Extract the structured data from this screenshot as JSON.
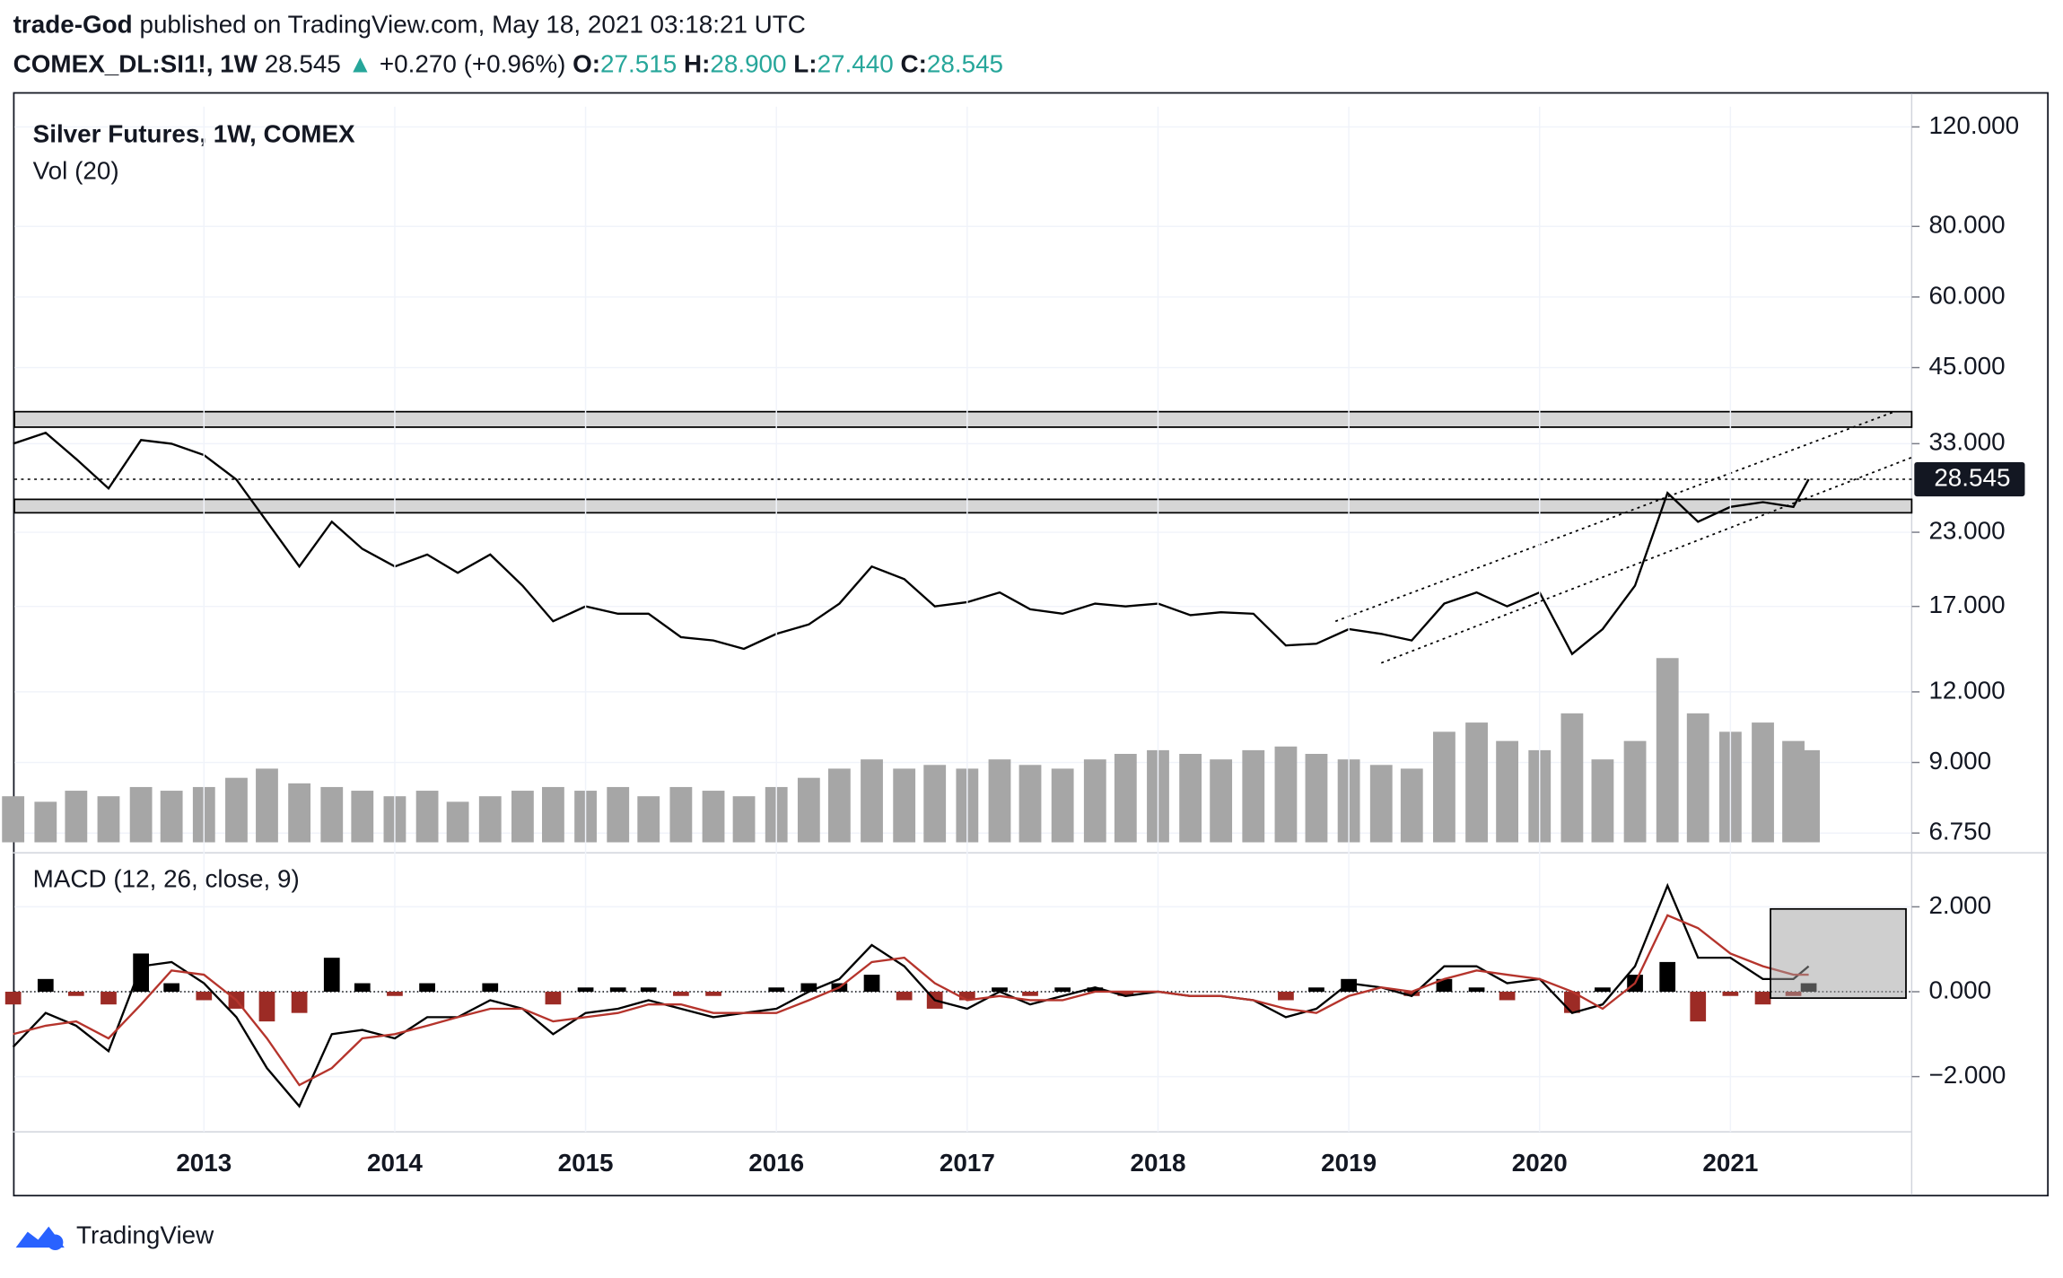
{
  "header": {
    "author": "trade-God",
    "published": "published on TradingView.com, May 18, 2021 03:18:21 UTC",
    "symbol": "COMEX_DL:SI1!, 1W",
    "price": "28.545",
    "arrow": "▲",
    "change": "+0.270 (+0.96%)",
    "o_label": "O:",
    "open": "27.515",
    "h_label": "H:",
    "high": "28.900",
    "l_label": "L:",
    "low": "27.440",
    "c_label": "C:",
    "close": "28.545"
  },
  "footer": {
    "brand": "TradingView"
  },
  "chart_data": [
    {
      "type": "line",
      "title": "Silver Futures, 1W, COMEX",
      "log": true,
      "grid": true,
      "x": [
        2012,
        2012.17,
        2012.33,
        2012.5,
        2012.67,
        2012.83,
        2013,
        2013.17,
        2013.33,
        2013.5,
        2013.67,
        2013.83,
        2014,
        2014.17,
        2014.33,
        2014.5,
        2014.67,
        2014.83,
        2015,
        2015.17,
        2015.33,
        2015.5,
        2015.67,
        2015.83,
        2016,
        2016.17,
        2016.33,
        2016.5,
        2016.67,
        2016.83,
        2017,
        2017.17,
        2017.33,
        2017.5,
        2017.67,
        2017.83,
        2018,
        2018.17,
        2018.33,
        2018.5,
        2018.67,
        2018.83,
        2019,
        2019.17,
        2019.33,
        2019.5,
        2019.67,
        2019.83,
        2020,
        2020.17,
        2020.33,
        2020.5,
        2020.67,
        2020.83,
        2021,
        2021.17,
        2021.33,
        2021.41
      ],
      "series": [
        {
          "color": "#000000",
          "values": [
            33,
            34.5,
            31,
            27.5,
            33.5,
            33,
            31.5,
            28.5,
            24,
            20,
            24,
            21.5,
            20,
            21,
            19.5,
            21,
            18.5,
            16,
            17,
            16.5,
            16.5,
            15,
            14.8,
            14.3,
            15.2,
            15.8,
            17.2,
            20,
            19,
            17,
            17.3,
            18,
            16.8,
            16.5,
            17.2,
            17,
            17.2,
            16.4,
            16.6,
            16.5,
            14.5,
            14.6,
            15.5,
            15.2,
            14.8,
            17.2,
            18,
            17,
            18,
            14,
            15.5,
            18.5,
            27,
            24,
            25.5,
            26,
            25.5,
            28.545
          ]
        }
      ],
      "volume": {
        "label": "Vol (20)",
        "color": "#a6a6a6",
        "values": [
          25,
          22,
          28,
          25,
          30,
          28,
          30,
          35,
          40,
          32,
          30,
          28,
          25,
          28,
          22,
          25,
          28,
          30,
          28,
          30,
          25,
          30,
          28,
          25,
          30,
          35,
          40,
          45,
          40,
          42,
          40,
          45,
          42,
          40,
          45,
          48,
          50,
          48,
          45,
          50,
          52,
          48,
          45,
          42,
          40,
          60,
          65,
          55,
          50,
          70,
          45,
          55,
          100,
          70,
          60,
          65,
          55,
          50
        ]
      },
      "zones": [
        [
          35.3,
          37.6
        ],
        [
          24.9,
          26.3
        ]
      ],
      "trendlines": [
        {
          "x": [
            2018.93,
            2021.86
          ],
          "y": [
            16.0,
            37.6
          ]
        },
        {
          "x": [
            2019.17,
            2021.95
          ],
          "y": [
            13.5,
            31.2
          ]
        }
      ],
      "xlim": [
        2012,
        2021.95
      ],
      "ylim": [
        6.5,
        131
      ],
      "yticks": [
        {
          "value": 120,
          "label": "120.000"
        },
        {
          "value": 80,
          "label": "80.000"
        },
        {
          "value": 60,
          "label": "60.000"
        },
        {
          "value": 45,
          "label": "45.000"
        },
        {
          "value": 33,
          "label": "33.000"
        },
        {
          "value": 23,
          "label": "23.000"
        },
        {
          "value": 17,
          "label": "17.000"
        },
        {
          "value": 12,
          "label": "12.000"
        },
        {
          "value": 9,
          "label": "9.000"
        },
        {
          "value": 6.75,
          "label": "6.750"
        }
      ]
    },
    {
      "type": "macd",
      "title": "MACD (12, 26, close, 9)",
      "grid": true,
      "series": [
        {
          "color": "#000000",
          "values": [
            -1.3,
            -0.5,
            -0.8,
            -1.4,
            0.6,
            0.7,
            0.2,
            -0.6,
            -1.8,
            -2.7,
            -1.0,
            -0.9,
            -1.1,
            -0.6,
            -0.6,
            -0.2,
            -0.4,
            -1.0,
            -0.5,
            -0.4,
            -0.2,
            -0.4,
            -0.6,
            -0.5,
            -0.4,
            0.0,
            0.3,
            1.1,
            0.6,
            -0.2,
            -0.4,
            0.0,
            -0.3,
            -0.1,
            0.1,
            -0.1,
            0.0,
            -0.1,
            -0.1,
            -0.2,
            -0.6,
            -0.4,
            0.2,
            0.1,
            -0.1,
            0.6,
            0.6,
            0.2,
            0.3,
            -0.5,
            -0.3,
            0.6,
            2.5,
            0.8,
            0.8,
            0.3,
            0.3,
            0.6
          ]
        },
        {
          "color": "#b5342c",
          "values": [
            -1.0,
            -0.8,
            -0.7,
            -1.1,
            -0.3,
            0.5,
            0.4,
            -0.2,
            -1.1,
            -2.2,
            -1.8,
            -1.1,
            -1.0,
            -0.8,
            -0.6,
            -0.4,
            -0.4,
            -0.7,
            -0.6,
            -0.5,
            -0.3,
            -0.3,
            -0.5,
            -0.5,
            -0.5,
            -0.2,
            0.1,
            0.7,
            0.8,
            0.2,
            -0.2,
            -0.1,
            -0.2,
            -0.2,
            0.0,
            0.0,
            0.0,
            -0.1,
            -0.1,
            -0.2,
            -0.4,
            -0.5,
            -0.1,
            0.1,
            0.0,
            0.3,
            0.5,
            0.4,
            0.3,
            0.0,
            -0.4,
            0.2,
            1.8,
            1.5,
            0.9,
            0.6,
            0.4,
            0.4
          ]
        }
      ],
      "histogram": {
        "up_color": "#000000",
        "down_color": "#9c2b25",
        "values": [
          -0.3,
          0.3,
          -0.1,
          -0.3,
          0.9,
          0.2,
          -0.2,
          -0.4,
          -0.7,
          -0.5,
          0.8,
          0.2,
          -0.1,
          0.2,
          0.0,
          0.2,
          0.0,
          -0.3,
          0.1,
          0.1,
          0.1,
          -0.1,
          -0.1,
          0.0,
          0.1,
          0.2,
          0.2,
          0.4,
          -0.2,
          -0.4,
          -0.2,
          0.1,
          -0.1,
          0.1,
          0.1,
          -0.1,
          0.0,
          0.0,
          0.0,
          0.0,
          -0.2,
          0.1,
          0.3,
          0.0,
          -0.1,
          0.3,
          0.1,
          -0.2,
          0.0,
          -0.5,
          0.1,
          0.4,
          0.7,
          -0.7,
          -0.1,
          -0.3,
          -0.1,
          0.2
        ]
      },
      "box": {
        "x": [
          2021.21,
          2021.92
        ],
        "y": [
          -0.15,
          1.95
        ]
      },
      "xlim": [
        2012,
        2021.95
      ],
      "ylim": [
        -3.3,
        2.9
      ],
      "xticks": [
        2013,
        2014,
        2015,
        2016,
        2017,
        2018,
        2019,
        2020,
        2021
      ],
      "yticks": [
        {
          "value": 2,
          "label": "2.000"
        },
        {
          "value": 0,
          "label": "0.000"
        },
        {
          "value": -2,
          "label": "−2.000"
        }
      ]
    }
  ]
}
